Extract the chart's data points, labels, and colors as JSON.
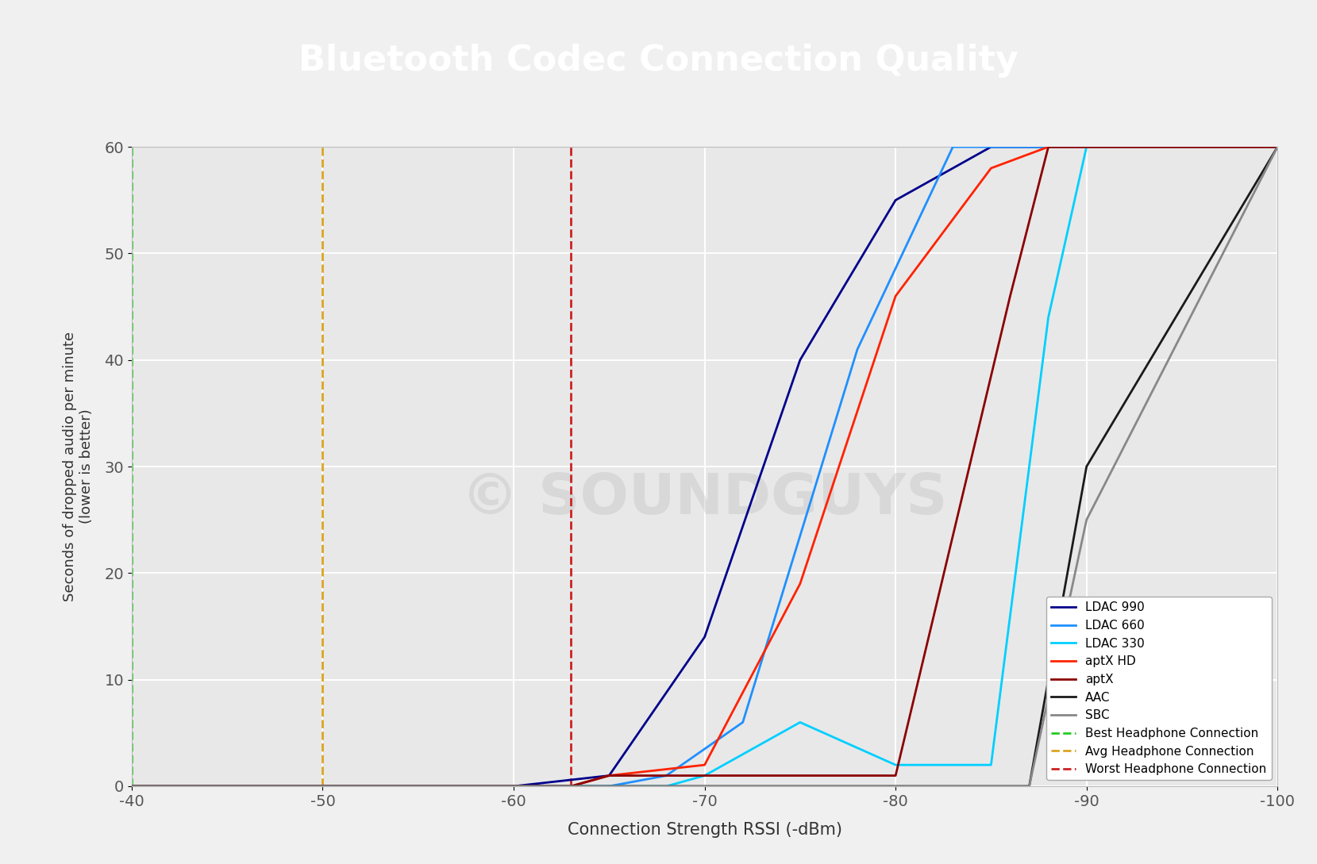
{
  "title": "Bluetooth Codec Connection Quality",
  "xlabel": "Connection Strength RSSI (-dBm)",
  "ylabel": "Seconds of dropped audio per minute\n(lower is better)",
  "title_bg_color": "#000000",
  "title_text_color": "#ffffff",
  "plot_bg_color": "#e8e8e8",
  "fig_bg_color": "#f0f0f0",
  "xlim_left": -40,
  "xlim_right": -100,
  "ylim": [
    0,
    60
  ],
  "xticks": [
    -40,
    -50,
    -60,
    -70,
    -80,
    -90,
    -100
  ],
  "yticks": [
    0,
    10,
    20,
    30,
    40,
    50,
    60
  ],
  "series": [
    {
      "name": "LDAC 990",
      "x": [
        -40,
        -60,
        -65,
        -70,
        -75,
        -80,
        -85,
        -100
      ],
      "y": [
        0,
        0,
        1,
        14,
        40,
        55,
        60,
        60
      ],
      "color": "#00008B",
      "linewidth": 2.0
    },
    {
      "name": "LDAC 660",
      "x": [
        -40,
        -65,
        -68,
        -72,
        -78,
        -83,
        -88,
        -100
      ],
      "y": [
        0,
        0,
        1,
        6,
        41,
        60,
        60,
        60
      ],
      "color": "#1E90FF",
      "linewidth": 2.0
    },
    {
      "name": "LDAC 330",
      "x": [
        -40,
        -68,
        -70,
        -75,
        -80,
        -85,
        -88,
        -90,
        -100
      ],
      "y": [
        0,
        0,
        1,
        6,
        2,
        2,
        44,
        60,
        60
      ],
      "color": "#00CFFF",
      "linewidth": 2.0
    },
    {
      "name": "aptX HD",
      "x": [
        -40,
        -63,
        -65,
        -70,
        -75,
        -80,
        -85,
        -88,
        -100
      ],
      "y": [
        0,
        0,
        1,
        2,
        19,
        46,
        58,
        60,
        60
      ],
      "color": "#FF2200",
      "linewidth": 2.0
    },
    {
      "name": "aptX",
      "x": [
        -40,
        -63,
        -65,
        -70,
        -75,
        -80,
        -86,
        -88,
        -100
      ],
      "y": [
        0,
        0,
        1,
        1,
        1,
        1,
        46,
        60,
        60
      ],
      "color": "#8B0000",
      "linewidth": 2.0
    },
    {
      "name": "AAC",
      "x": [
        -40,
        -87,
        -90,
        -100
      ],
      "y": [
        0,
        0,
        30,
        60
      ],
      "color": "#1a1a1a",
      "linewidth": 2.0
    },
    {
      "name": "SBC",
      "x": [
        -40,
        -87,
        -90,
        -100
      ],
      "y": [
        0,
        0,
        25,
        60
      ],
      "color": "#888888",
      "linewidth": 2.0
    }
  ],
  "vlines": [
    {
      "name": "Best Headphone Connection",
      "x": -40,
      "color": "#22CC22",
      "linestyle": "--",
      "linewidth": 2.0
    },
    {
      "name": "Avg Headphone Connection",
      "x": -50,
      "color": "#DAA520",
      "linestyle": "--",
      "linewidth": 2.0
    },
    {
      "name": "Worst Headphone Connection",
      "x": -63,
      "color": "#CC2222",
      "linestyle": "--",
      "linewidth": 2.0
    }
  ],
  "watermark_text": "© SOUNDGUYS",
  "watermark_color": "#bbbbbb",
  "watermark_fontsize": 52,
  "watermark_alpha": 0.35
}
